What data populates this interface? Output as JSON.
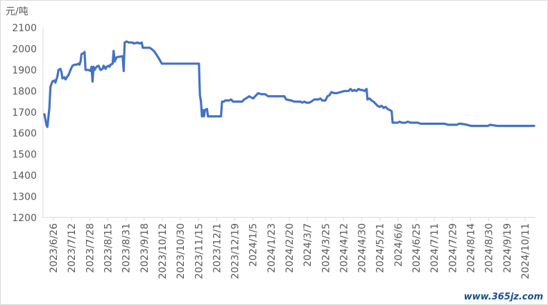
{
  "watermark": "www.365jz.com",
  "chart_data": {
    "type": "line",
    "ylabel": "元/吨",
    "xlabel": "",
    "title": "",
    "ylim": [
      1200,
      2100
    ],
    "yticks": [
      1200,
      1300,
      1400,
      1500,
      1600,
      1700,
      1800,
      1900,
      2000,
      2100
    ],
    "xlim": [
      "2023-06-26",
      "2024-10-26"
    ],
    "xtick_labels": [
      "2023/6/26",
      "2023/7/12",
      "2023/7/28",
      "2023/8/15",
      "2023/8/31",
      "2023/9/18",
      "2023/10/12",
      "2023/10/30",
      "2023/11/15",
      "2023/12/1",
      "2023/12/19",
      "2024/1/5",
      "2024/1/23",
      "2024/2/20",
      "2024/3/7",
      "2024/3/25",
      "2024/4/12",
      "2024/4/30",
      "2024/5/21",
      "2024/6/6",
      "2024/6/25",
      "2024/7/11",
      "2024/7/29",
      "2024/8/14",
      "2024/8/30",
      "2024/9/19",
      "2024/10/11"
    ],
    "grid": false,
    "color": "#4472c4",
    "series": [
      {
        "points": [
          [
            "2023-06-26",
            1690
          ],
          [
            "2023-06-28",
            1640
          ],
          [
            "2023-06-29",
            1630
          ],
          [
            "2023-07-01",
            1720
          ],
          [
            "2023-07-02",
            1820
          ],
          [
            "2023-07-04",
            1845
          ],
          [
            "2023-07-06",
            1850
          ],
          [
            "2023-07-07",
            1840
          ],
          [
            "2023-07-09",
            1870
          ],
          [
            "2023-07-10",
            1900
          ],
          [
            "2023-07-12",
            1905
          ],
          [
            "2023-07-13",
            1890
          ],
          [
            "2023-07-14",
            1860
          ],
          [
            "2023-07-16",
            1865
          ],
          [
            "2023-07-17",
            1855
          ],
          [
            "2023-07-19",
            1870
          ],
          [
            "2023-07-20",
            1875
          ],
          [
            "2023-07-22",
            1900
          ],
          [
            "2023-07-24",
            1920
          ],
          [
            "2023-07-26",
            1925
          ],
          [
            "2023-07-28",
            1925
          ],
          [
            "2023-07-30",
            1930
          ],
          [
            "2023-07-31",
            1925
          ],
          [
            "2023-08-01",
            1940
          ],
          [
            "2023-08-02",
            1975
          ],
          [
            "2023-08-04",
            1980
          ],
          [
            "2023-08-05",
            1985
          ],
          [
            "2023-08-06",
            1900
          ],
          [
            "2023-08-09",
            1900
          ],
          [
            "2023-08-11",
            1895
          ],
          [
            "2023-08-12",
            1915
          ],
          [
            "2023-08-13",
            1845
          ],
          [
            "2023-08-14",
            1915
          ],
          [
            "2023-08-15",
            1900
          ],
          [
            "2023-08-17",
            1915
          ],
          [
            "2023-08-19",
            1920
          ],
          [
            "2023-08-21",
            1900
          ],
          [
            "2023-08-23",
            1905
          ],
          [
            "2023-08-24",
            1920
          ],
          [
            "2023-08-26",
            1905
          ],
          [
            "2023-08-27",
            1915
          ],
          [
            "2023-08-29",
            1920
          ],
          [
            "2023-08-30",
            1915
          ],
          [
            "2023-08-31",
            1925
          ],
          [
            "2023-09-02",
            1930
          ],
          [
            "2023-09-03",
            1990
          ],
          [
            "2023-09-04",
            1940
          ],
          [
            "2023-09-06",
            1960
          ],
          [
            "2023-09-12",
            1965
          ],
          [
            "2023-09-13",
            1895
          ],
          [
            "2023-09-14",
            2030
          ],
          [
            "2023-09-16",
            2035
          ],
          [
            "2023-09-18",
            2030
          ],
          [
            "2023-09-22",
            2030
          ],
          [
            "2023-09-23",
            2025
          ],
          [
            "2023-09-27",
            2030
          ],
          [
            "2023-09-29",
            2025
          ],
          [
            "2023-10-01",
            2030
          ],
          [
            "2023-10-02",
            2005
          ],
          [
            "2023-10-09",
            2005
          ],
          [
            "2023-10-12",
            1995
          ],
          [
            "2023-10-14",
            1985
          ],
          [
            "2023-10-18",
            1955
          ],
          [
            "2023-10-21",
            1930
          ],
          [
            "2023-11-27",
            1930
          ],
          [
            "2023-11-28",
            1780
          ],
          [
            "2023-11-29",
            1750
          ],
          [
            "2023-11-30",
            1680
          ],
          [
            "2023-12-01",
            1710
          ],
          [
            "2023-12-02",
            1680
          ],
          [
            "2023-12-03",
            1710
          ],
          [
            "2023-12-05",
            1715
          ],
          [
            "2023-12-06",
            1680
          ],
          [
            "2023-12-19",
            1680
          ],
          [
            "2023-12-20",
            1750
          ],
          [
            "2023-12-22",
            1750
          ],
          [
            "2023-12-23",
            1755
          ],
          [
            "2023-12-27",
            1755
          ],
          [
            "2023-12-29",
            1760
          ],
          [
            "2023-12-31",
            1750
          ],
          [
            "2024-01-09",
            1750
          ],
          [
            "2024-01-11",
            1760
          ],
          [
            "2024-01-13",
            1765
          ],
          [
            "2024-01-16",
            1775
          ],
          [
            "2024-01-18",
            1770
          ],
          [
            "2024-01-20",
            1765
          ],
          [
            "2024-01-23",
            1780
          ],
          [
            "2024-01-25",
            1790
          ],
          [
            "2024-01-28",
            1785
          ],
          [
            "2024-02-01",
            1785
          ],
          [
            "2024-02-04",
            1775
          ],
          [
            "2024-02-20",
            1775
          ],
          [
            "2024-02-22",
            1760
          ],
          [
            "2024-02-27",
            1755
          ],
          [
            "2024-03-01",
            1750
          ],
          [
            "2024-03-07",
            1750
          ],
          [
            "2024-03-09",
            1745
          ],
          [
            "2024-03-11",
            1750
          ],
          [
            "2024-03-13",
            1745
          ],
          [
            "2024-03-16",
            1745
          ],
          [
            "2024-03-18",
            1750
          ],
          [
            "2024-03-21",
            1760
          ],
          [
            "2024-03-25",
            1760
          ],
          [
            "2024-03-27",
            1765
          ],
          [
            "2024-03-29",
            1755
          ],
          [
            "2024-04-01",
            1755
          ],
          [
            "2024-04-03",
            1775
          ],
          [
            "2024-04-05",
            1780
          ],
          [
            "2024-04-07",
            1795
          ],
          [
            "2024-04-10",
            1790
          ],
          [
            "2024-04-12",
            1790
          ],
          [
            "2024-04-16",
            1795
          ],
          [
            "2024-04-20",
            1800
          ],
          [
            "2024-04-24",
            1800
          ],
          [
            "2024-04-26",
            1810
          ],
          [
            "2024-04-28",
            1800
          ],
          [
            "2024-04-30",
            1805
          ],
          [
            "2024-05-02",
            1800
          ],
          [
            "2024-05-04",
            1810
          ],
          [
            "2024-05-06",
            1805
          ],
          [
            "2024-05-08",
            1805
          ],
          [
            "2024-05-10",
            1800
          ],
          [
            "2024-05-12",
            1810
          ],
          [
            "2024-05-13",
            1760
          ],
          [
            "2024-05-15",
            1765
          ],
          [
            "2024-05-17",
            1755
          ],
          [
            "2024-05-19",
            1750
          ],
          [
            "2024-05-21",
            1740
          ],
          [
            "2024-05-23",
            1730
          ],
          [
            "2024-05-25",
            1725
          ],
          [
            "2024-05-27",
            1730
          ],
          [
            "2024-05-29",
            1720
          ],
          [
            "2024-05-31",
            1725
          ],
          [
            "2024-06-02",
            1715
          ],
          [
            "2024-06-04",
            1710
          ],
          [
            "2024-06-06",
            1705
          ],
          [
            "2024-06-07",
            1650
          ],
          [
            "2024-06-12",
            1650
          ],
          [
            "2024-06-14",
            1655
          ],
          [
            "2024-06-16",
            1650
          ],
          [
            "2024-06-20",
            1650
          ],
          [
            "2024-06-22",
            1655
          ],
          [
            "2024-06-25",
            1650
          ],
          [
            "2024-07-02",
            1650
          ],
          [
            "2024-07-05",
            1645
          ],
          [
            "2024-07-11",
            1645
          ],
          [
            "2024-07-15",
            1645
          ],
          [
            "2024-07-29",
            1645
          ],
          [
            "2024-08-01",
            1640
          ],
          [
            "2024-08-10",
            1640
          ],
          [
            "2024-08-12",
            1645
          ],
          [
            "2024-08-14",
            1645
          ],
          [
            "2024-08-20",
            1640
          ],
          [
            "2024-08-24",
            1635
          ],
          [
            "2024-08-30",
            1635
          ],
          [
            "2024-09-10",
            1635
          ],
          [
            "2024-09-12",
            1640
          ],
          [
            "2024-09-19",
            1635
          ],
          [
            "2024-10-11",
            1635
          ],
          [
            "2024-10-26",
            1635
          ]
        ]
      }
    ]
  }
}
